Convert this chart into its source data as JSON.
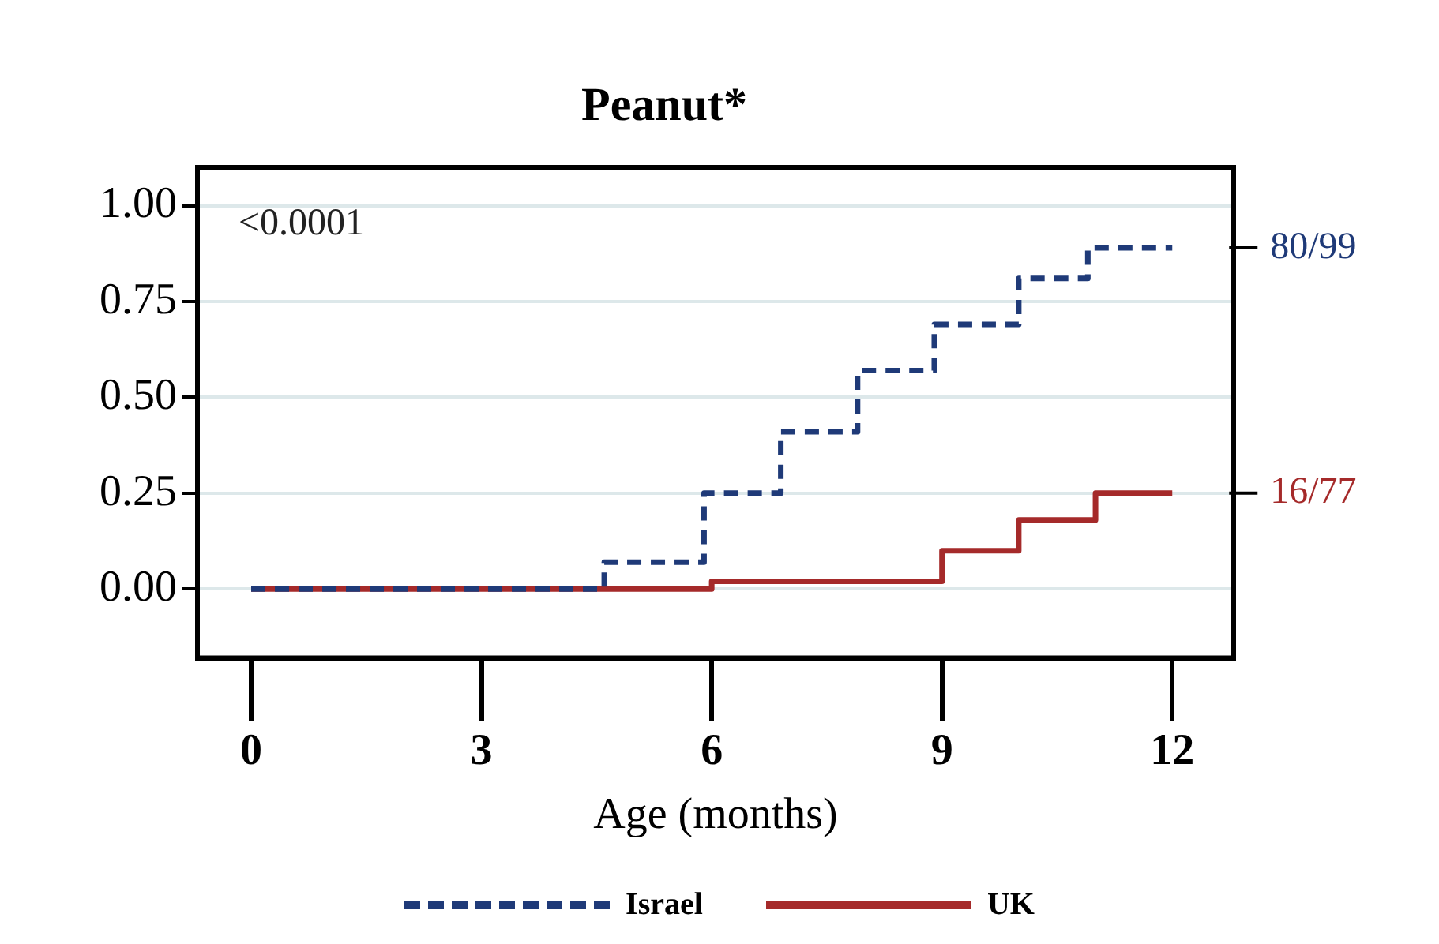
{
  "chart_data": {
    "type": "step",
    "title": "Peanut*",
    "xlabel": "Age (months)",
    "xlim": [
      -0.7,
      12.8
    ],
    "xticks": [
      0,
      3,
      6,
      9,
      12
    ],
    "ylim": [
      -0.18,
      1.1
    ],
    "yticks": [
      {
        "value": 0,
        "label": "0.00"
      },
      {
        "value": 0.25,
        "label": "0.25"
      },
      {
        "value": 0.5,
        "label": "0.50"
      },
      {
        "value": 0.75,
        "label": "0.75"
      },
      {
        "value": 1,
        "label": "1.00"
      }
    ],
    "grid": "y",
    "legend": "bottom",
    "marker": "none",
    "series": [
      {
        "name": "Israel",
        "color": "#1f3a78",
        "line_style": "dashed",
        "x": [
          0,
          4.6,
          5.9,
          6.9,
          7.9,
          8.9,
          10,
          10.9,
          12
        ],
        "values": [
          0,
          0.07,
          0.25,
          0.41,
          0.57,
          0.69,
          0.81,
          0.89,
          0.89
        ]
      },
      {
        "name": "UK",
        "color": "#a52a2a",
        "line_style": "solid",
        "x": [
          0,
          6,
          9,
          10,
          11,
          12
        ],
        "values": [
          0,
          0.02,
          0.1,
          0.18,
          0.25,
          0.25
        ]
      }
    ],
    "annotations": [
      "<0.0001",
      {
        "text": "80/99",
        "x": 12,
        "y": 0.89
      },
      {
        "text": "16/77",
        "x": 12,
        "y": 0.25
      }
    ]
  }
}
